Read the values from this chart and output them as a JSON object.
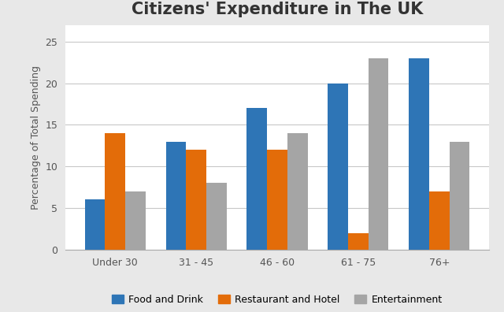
{
  "title": "Citizens' Expenditure in The UK",
  "ylabel": "Percentage of Total Spending",
  "categories": [
    "Under 30",
    "31 - 45",
    "46 - 60",
    "61 - 75",
    "76+"
  ],
  "series": [
    {
      "label": "Food and Drink",
      "color": "#2E75B6",
      "values": [
        6,
        13,
        17,
        20,
        23
      ]
    },
    {
      "label": "Restaurant and Hotel",
      "color": "#E36C09",
      "values": [
        14,
        12,
        12,
        2,
        7
      ]
    },
    {
      "label": "Entertainment",
      "color": "#A5A5A5",
      "values": [
        7,
        8,
        14,
        23,
        13
      ]
    }
  ],
  "ylim": [
    0,
    27
  ],
  "yticks": [
    0,
    5,
    10,
    15,
    20,
    25
  ],
  "bar_width": 0.25,
  "outer_background": "#E8E8E8",
  "inner_background": "#FFFFFF",
  "grid_color": "#C8C8C8",
  "title_fontsize": 15,
  "label_fontsize": 9,
  "tick_fontsize": 9,
  "legend_fontsize": 9
}
